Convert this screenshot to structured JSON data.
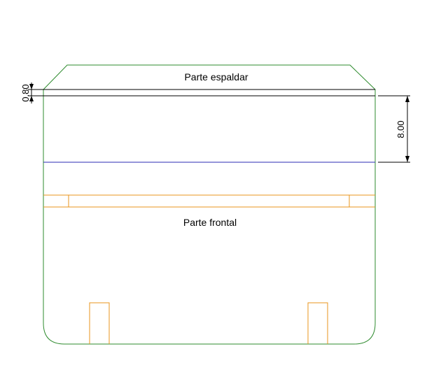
{
  "labels": {
    "back_part": "Parte espaldar",
    "front_part": "Parte frontal"
  },
  "dimensions": {
    "small_gap": "0.80",
    "band_height": "8.00"
  },
  "colors": {
    "outline": "#2e8b2e",
    "orange": "#e8951e",
    "blue": "#2b2bb5",
    "black": "#000000"
  }
}
